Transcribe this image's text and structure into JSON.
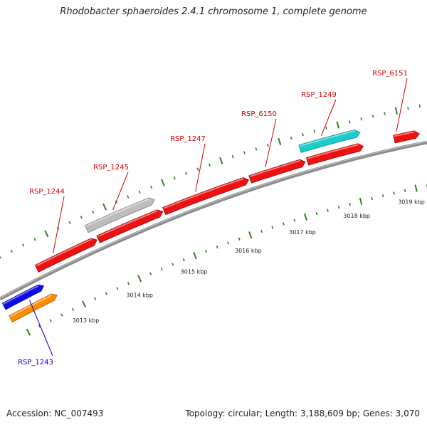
{
  "title": "Rhodobacter sphaeroides 2.4.1 chromosome 1, complete genome",
  "footer": {
    "accession": "Accession: NC_007493",
    "summary": "Topology: circular; Length: 3,188,609 bp; Genes: 3,070"
  },
  "colors": {
    "background": "#ffffff",
    "backbone": "#8c8c8c",
    "tick": "#2e7d1e",
    "label_forward": "#cc0000",
    "label_reverse": "#0000cc",
    "cds": "#ee1111",
    "rna": "#1ccccc",
    "pseudo": "#bdbdbd",
    "reverse_cds": "#0b0be8",
    "reverse_other": "#ff8c00"
  },
  "kbp_labels": [
    {
      "text": "3013 kbp"
    },
    {
      "text": "3014 kbp"
    },
    {
      "text": "3015 kbp"
    },
    {
      "text": "3016 kbp"
    },
    {
      "text": "3017 kbp"
    },
    {
      "text": "3018 kbp"
    },
    {
      "text": "3019 kbp"
    }
  ],
  "genes": [
    {
      "label": "RSP_1243",
      "strand": "reverse",
      "color_key": "reverse_cds"
    },
    {
      "label": "",
      "strand": "reverse",
      "color_key": "reverse_other"
    },
    {
      "label": "RSP_1244",
      "strand": "forward",
      "color_key": "cds"
    },
    {
      "label": "",
      "strand": "forward",
      "color_key": "cds"
    },
    {
      "label": "RSP_1245",
      "strand": "forward",
      "color_key": "pseudo"
    },
    {
      "label": "RSP_1247",
      "strand": "forward",
      "color_key": "cds"
    },
    {
      "label": "RSP_6150",
      "strand": "forward",
      "color_key": "cds"
    },
    {
      "label": "",
      "strand": "forward",
      "color_key": "cds"
    },
    {
      "label": "RSP_1249",
      "strand": "forward",
      "color_key": "rna"
    },
    {
      "label": "RSP_6151",
      "strand": "forward",
      "color_key": "cds"
    }
  ]
}
